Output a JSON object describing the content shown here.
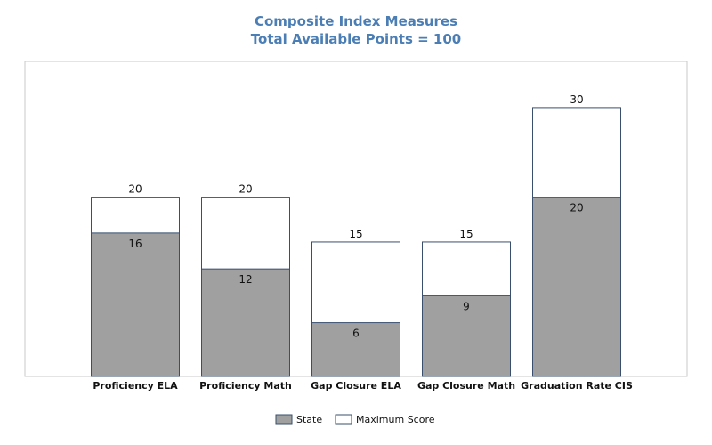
{
  "chart_data": {
    "type": "bar",
    "title": "Composite Index Measures",
    "subtitle": "Total Available Points = 100",
    "categories": [
      "Proficiency ELA",
      "Proficiency Math",
      "Gap Closure ELA",
      "Gap Closure Math",
      "Graduation Rate CIS"
    ],
    "series": [
      {
        "name": "State",
        "values": [
          16,
          12,
          6,
          9,
          20
        ],
        "color": "#a0a0a0"
      },
      {
        "name": "Maximum Score",
        "values": [
          20,
          20,
          15,
          15,
          30
        ],
        "color": "#ffffff"
      }
    ],
    "ylim": [
      0,
      35
    ],
    "grid": false,
    "legend": "bottom",
    "bar_border_color": "#3a4f6e",
    "title_color": "#4a7eb5"
  }
}
